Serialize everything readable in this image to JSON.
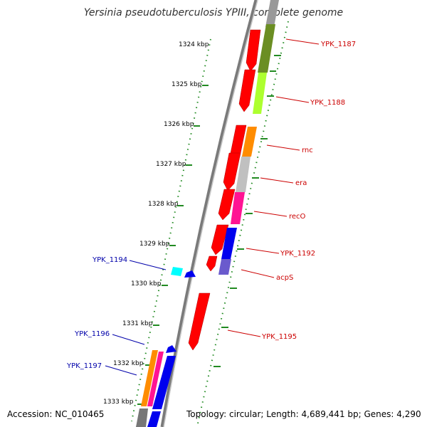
{
  "title": "Yersinia pseudotuberculosis YPIII, complete genome",
  "footer": {
    "accession": "Accession: NC_010465",
    "topology": "Topology: circular; Length: 4,689,441 bp; Genes: 4,290"
  },
  "colors": {
    "backbone": "#777777",
    "cds_strand": "#ff0000",
    "reverse_label": "#cc0000",
    "forward_label": "#0000aa",
    "ticks": "#228b22"
  },
  "ticks": [
    "1324 kbp",
    "1325 kbp",
    "1326 kbp",
    "1327 kbp",
    "1328 kbp",
    "1329 kbp",
    "1330 kbp",
    "1331 kbp",
    "1332 kbp",
    "1333 kbp"
  ],
  "right_labels": [
    "YPK_1187",
    "YPK_1188",
    "rnc",
    "era",
    "recO",
    "YPK_1192",
    "acpS",
    "YPK_1195"
  ],
  "left_labels": [
    "YPK_1194",
    "YPK_1196",
    "YPK_1197"
  ]
}
